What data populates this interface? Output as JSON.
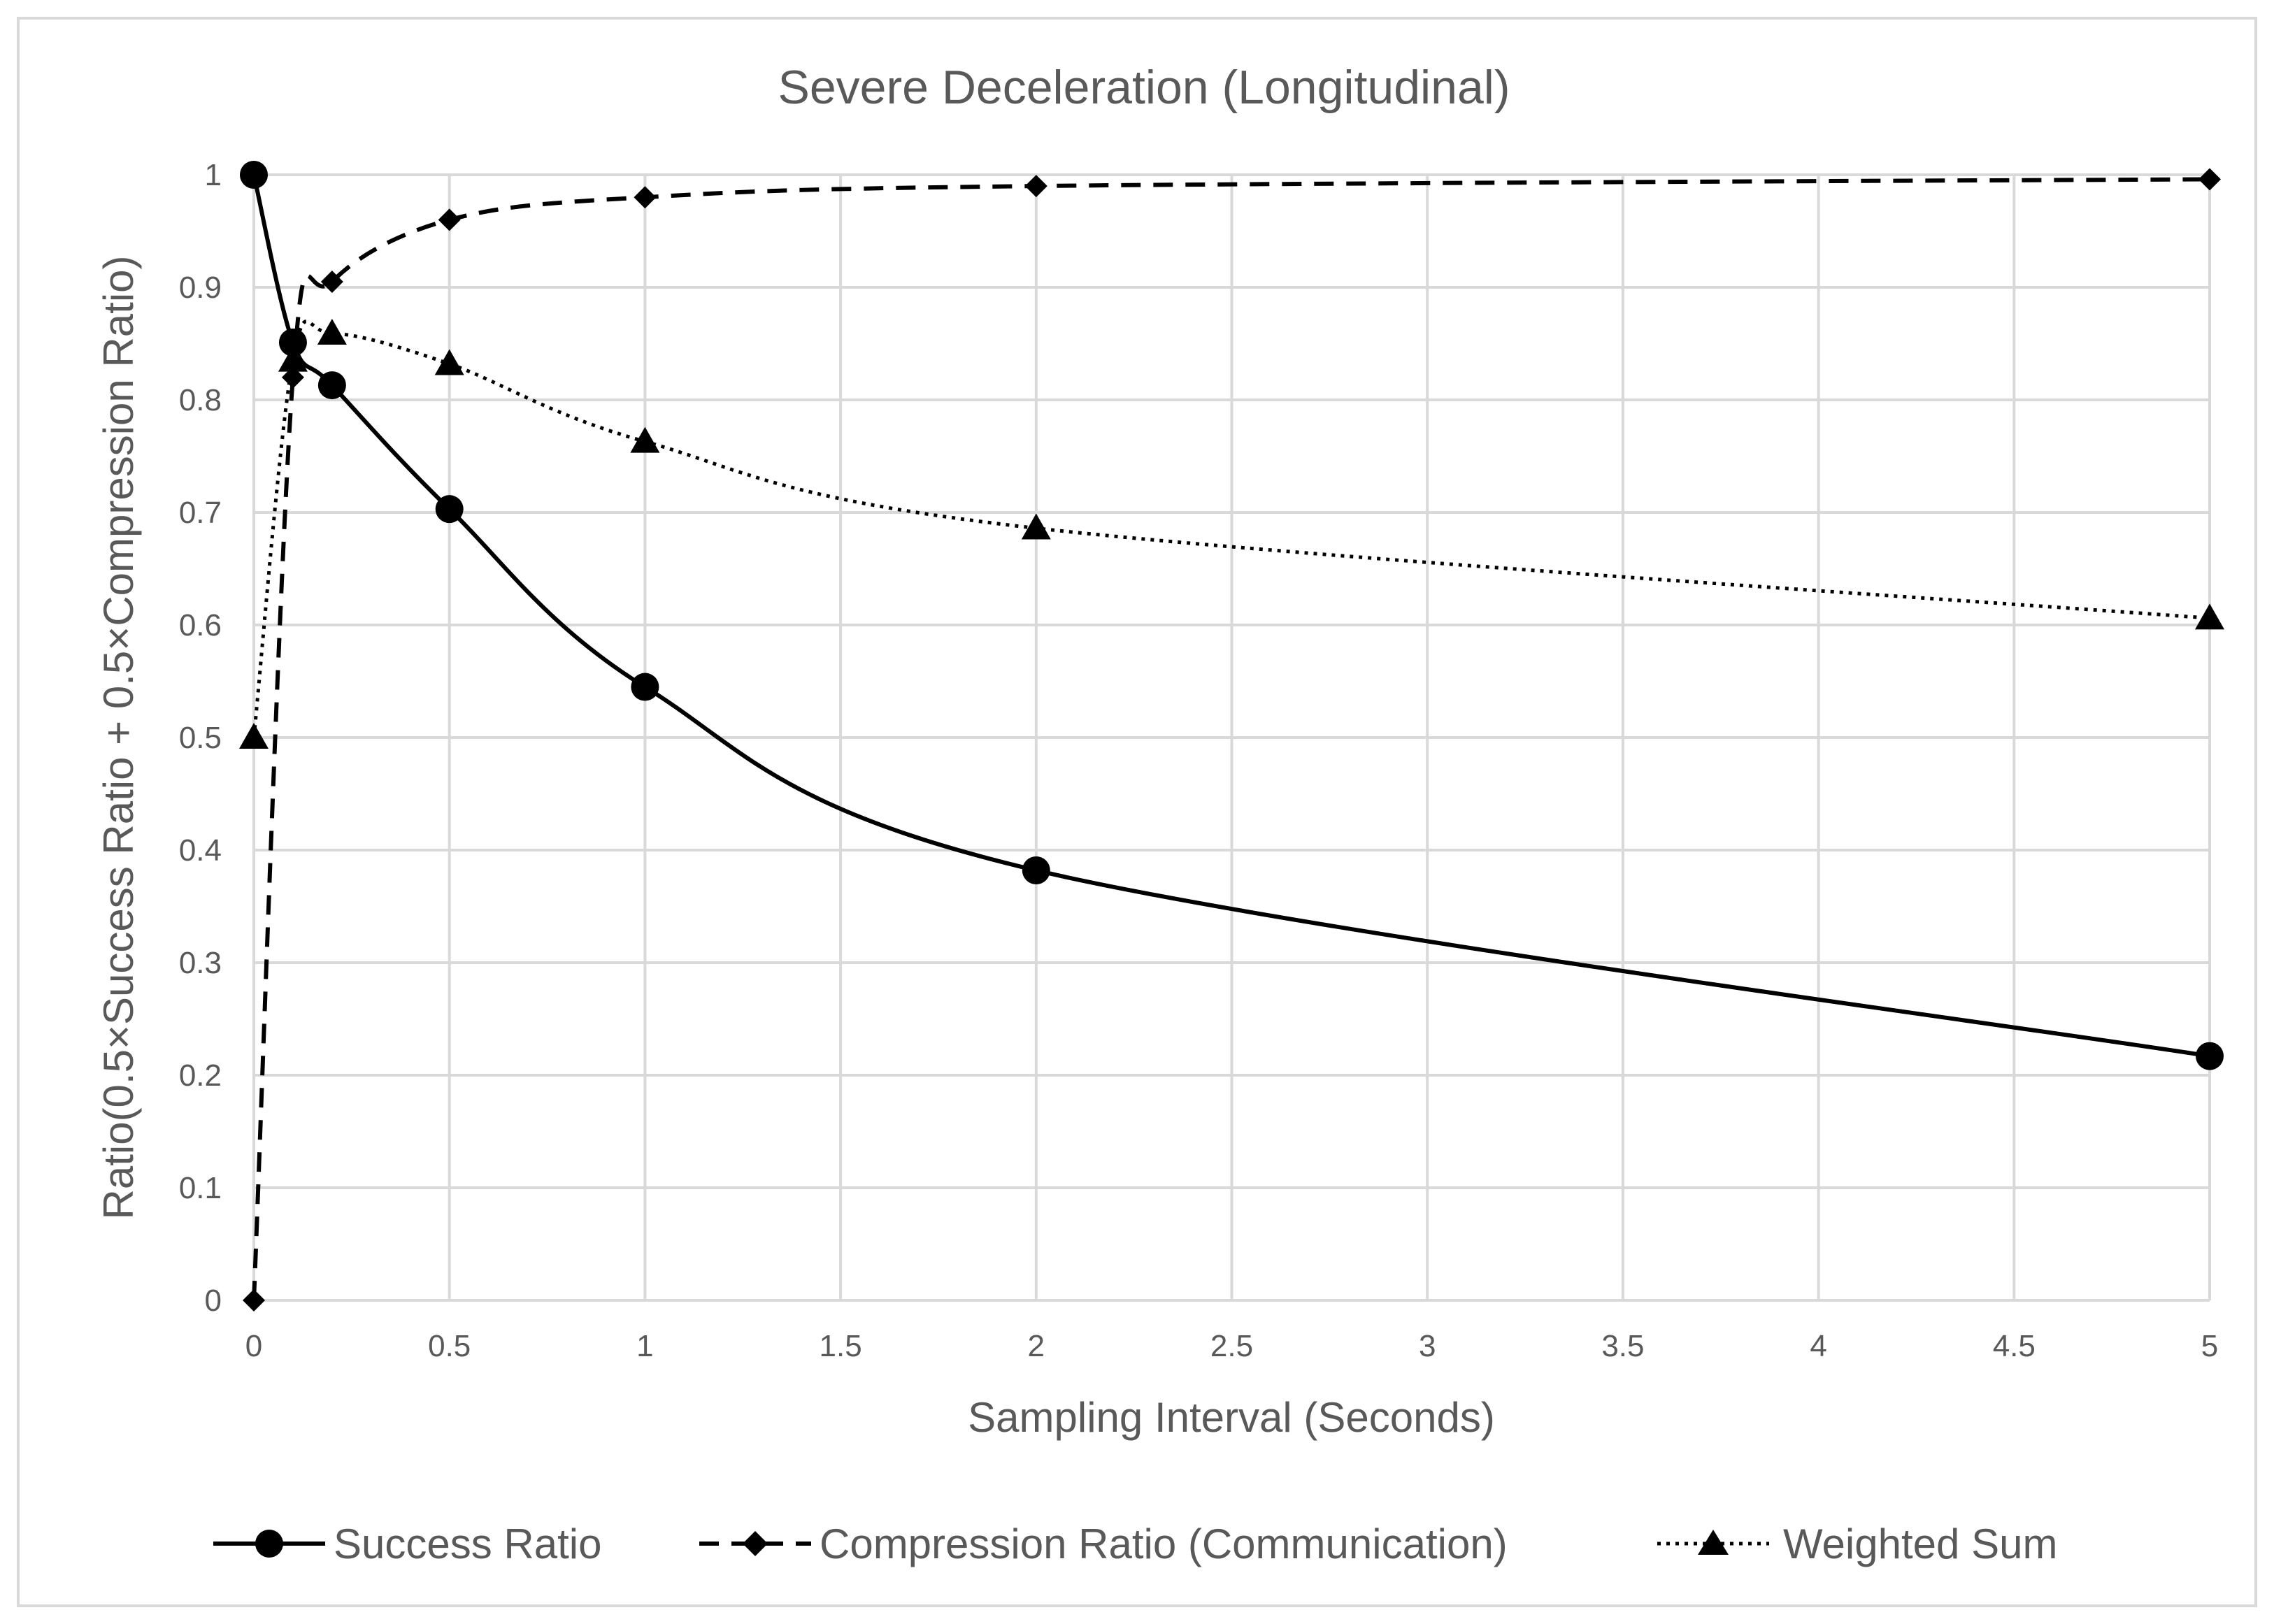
{
  "chart_data": {
    "type": "line",
    "title": "Severe Deceleration (Longitudinal)",
    "xlabel": "Sampling Interval (Seconds)",
    "ylabel": "Ratio(0.5×Success Ratio + 0.5×Compression Ratio)",
    "xlim": [
      0,
      5
    ],
    "ylim": [
      0,
      1
    ],
    "x_ticks": [
      "0",
      "0.5",
      "1",
      "1.5",
      "2",
      "2.5",
      "3",
      "3.5",
      "4",
      "4.5",
      "5"
    ],
    "y_ticks": [
      "0",
      "0.1",
      "0.2",
      "0.3",
      "0.4",
      "0.5",
      "0.6",
      "0.7",
      "0.8",
      "0.9",
      "1"
    ],
    "grid": true,
    "legend_position": "bottom",
    "series": [
      {
        "name": "Success Ratio",
        "line_style": "solid",
        "marker": "circle",
        "x": [
          0,
          0.1,
          0.2,
          0.5,
          1,
          2,
          5
        ],
        "values": [
          1.0,
          0.851,
          0.813,
          0.703,
          0.545,
          0.382,
          0.217
        ]
      },
      {
        "name": "Compression Ratio (Communication)",
        "line_style": "dashed",
        "marker": "diamond",
        "x": [
          0,
          0.1,
          0.2,
          0.5,
          1,
          2,
          5
        ],
        "values": [
          0.0,
          0.82,
          0.905,
          0.96,
          0.98,
          0.99,
          0.996
        ]
      },
      {
        "name": "Weighted Sum",
        "line_style": "dotted",
        "marker": "triangle",
        "x": [
          0,
          0.1,
          0.2,
          0.5,
          1,
          2,
          5
        ],
        "values": [
          0.5,
          0.835,
          0.859,
          0.832,
          0.763,
          0.686,
          0.606
        ]
      }
    ],
    "colors": {
      "line": "#000000",
      "grid": "#d9d9d9",
      "text": "#595959"
    }
  }
}
